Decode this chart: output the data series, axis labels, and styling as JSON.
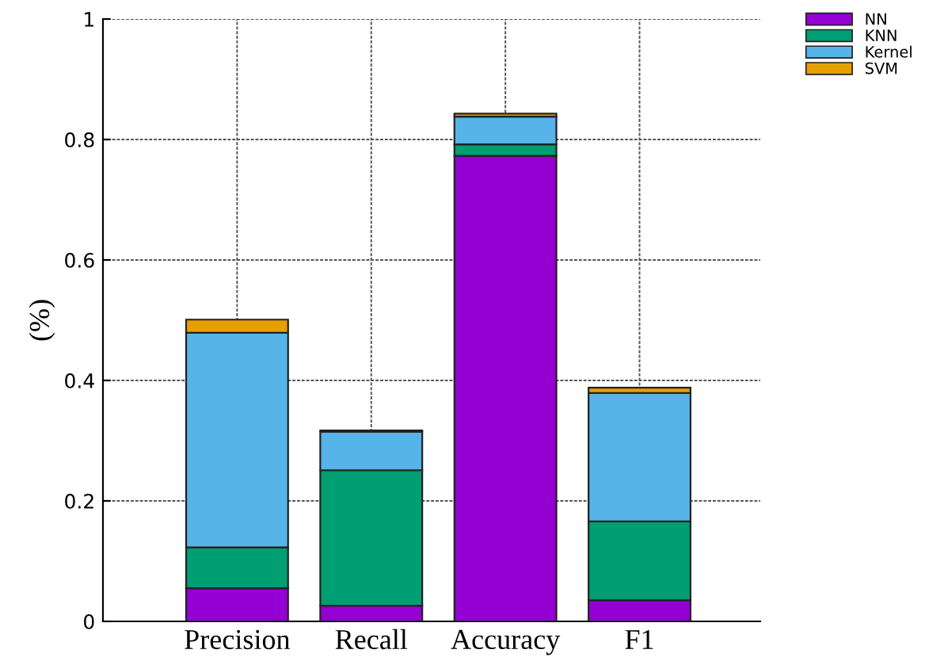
{
  "chart_data": {
    "type": "bar",
    "stacked": true,
    "ylabel": "(%)",
    "categories": [
      "Precision",
      "Recall",
      "Accuracy",
      "F1"
    ],
    "series": [
      {
        "name": "NN",
        "color": "#9400d3",
        "values": [
          0.055,
          0.026,
          0.773,
          0.035
        ]
      },
      {
        "name": "KNN",
        "color": "#009e73",
        "values": [
          0.068,
          0.225,
          0.019,
          0.131
        ]
      },
      {
        "name": "Kernel",
        "color": "#56b4e9",
        "values": [
          0.356,
          0.064,
          0.046,
          0.213
        ]
      },
      {
        "name": "SVM",
        "color": "#e69f00",
        "values": [
          0.022,
          0.002,
          0.005,
          0.009
        ]
      }
    ],
    "ylim": [
      0,
      1
    ],
    "yticks": [
      0,
      0.2,
      0.4,
      0.6,
      0.8,
      1
    ],
    "grid": true,
    "legend": "top right"
  }
}
